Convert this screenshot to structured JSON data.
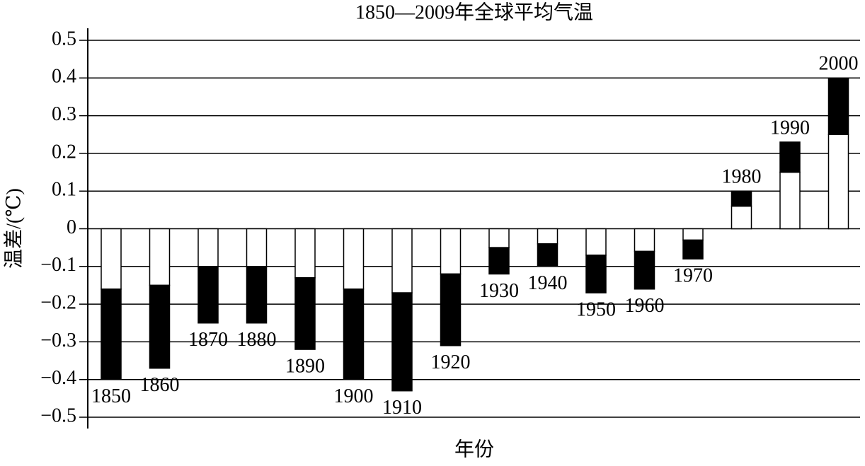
{
  "chart_data": {
    "type": "range-bar",
    "title": "1850—2009年全球平均气温",
    "x_label": "年份",
    "y_label": "温差/(℃)",
    "categories": [
      "1850",
      "1860",
      "1870",
      "1880",
      "1890",
      "1900",
      "1910",
      "1920",
      "1930",
      "1940",
      "1950",
      "1960",
      "1970",
      "1980",
      "1990",
      "2000"
    ],
    "inner": [
      -0.16,
      -0.15,
      -0.1,
      -0.1,
      -0.13,
      -0.16,
      -0.17,
      -0.12,
      -0.05,
      -0.04,
      -0.07,
      -0.06,
      -0.03,
      0.06,
      0.15,
      0.25
    ],
    "values": [
      -0.4,
      -0.37,
      -0.25,
      -0.25,
      -0.32,
      -0.4,
      -0.43,
      -0.31,
      -0.12,
      -0.1,
      -0.17,
      -0.16,
      -0.08,
      0.1,
      0.23,
      0.4
    ],
    "inner_color": "#ffffff",
    "color": "#000000",
    "ylim": [
      -0.5,
      0.5
    ],
    "yticks": [
      {
        "value": -0.5,
        "label": "−0.5"
      },
      {
        "value": -0.4,
        "label": "−0.4"
      },
      {
        "value": -0.3,
        "label": "−0.3"
      },
      {
        "value": -0.2,
        "label": "−0.2"
      },
      {
        "value": -0.1,
        "label": "−0.1"
      },
      0,
      0.1,
      0.2,
      0.3,
      0.4,
      0.5
    ],
    "grid": true
  }
}
